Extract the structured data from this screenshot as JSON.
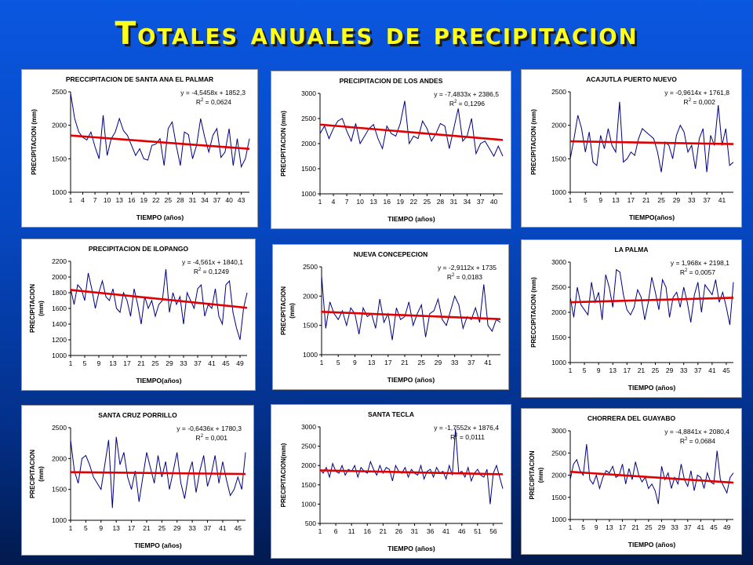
{
  "slide": {
    "title": "Totales anuales de precipitacion"
  },
  "colors": {
    "background": "#0647c0",
    "title": "#ffff1a",
    "series": "#00007f",
    "trend": "#e00000"
  },
  "chart_data": [
    {
      "type": "line",
      "title": "PRECCIPITACION DE SANTA ANA EL PALMAR",
      "xlabel": "TIEMPO (años)",
      "ylabel": "PRECIPITACION (mm)",
      "ylabel_lines": [
        "PRECIPITACION (mm)"
      ],
      "xticks": [
        "1",
        "4",
        "7",
        "10",
        "13",
        "16",
        "19",
        "22",
        "25",
        "28",
        "31",
        "34",
        "37",
        "40",
        "43"
      ],
      "yticks": [
        1000,
        1500,
        2000,
        2500
      ],
      "ylim": [
        1000,
        2500
      ],
      "n": 45,
      "equation": "y = -4,5458x + 1852,3",
      "r2": "0,0624",
      "values": [
        2480,
        2100,
        1900,
        1820,
        1780,
        1900,
        1680,
        1500,
        2150,
        1550,
        1800,
        1900,
        2100,
        1920,
        1850,
        1700,
        1550,
        1650,
        1500,
        1480,
        1700,
        1720,
        1800,
        1400,
        1950,
        2050,
        1700,
        1400,
        1900,
        1860,
        1500,
        1700,
        2100,
        1820,
        1600,
        1850,
        1950,
        1520,
        1600,
        1950,
        1400,
        1800,
        1380,
        1500,
        1800
      ]
    },
    {
      "type": "line",
      "title": "PRECIPITACION DE LOS ANDES",
      "xlabel": "TIEMPO (años)",
      "ylabel": "PRECIPITACION (mm)",
      "ylabel_lines": [
        "PRECIPITACION (mm)"
      ],
      "xticks": [
        "1",
        "4",
        "7",
        "10",
        "13",
        "16",
        "19",
        "22",
        "25",
        "28",
        "31",
        "34",
        "37",
        "40"
      ],
      "yticks": [
        1000,
        1500,
        2000,
        2500,
        3000
      ],
      "ylim": [
        1000,
        3000
      ],
      "n": 42,
      "equation": "y = -7,4833x + 2386,5",
      "r2": "0,1296",
      "values": [
        2200,
        2350,
        2100,
        2300,
        2450,
        2500,
        2250,
        2050,
        2400,
        2000,
        2150,
        2300,
        2380,
        2100,
        1900,
        2350,
        2200,
        2150,
        2400,
        2850,
        2000,
        2150,
        2100,
        2450,
        2300,
        2050,
        2200,
        2400,
        2350,
        1900,
        2300,
        2700,
        2050,
        2150,
        2500,
        1800,
        2000,
        2050,
        1900,
        1750,
        1950,
        1750
      ]
    },
    {
      "type": "line",
      "title": "ACAJUTLA PUERTO NUEVO",
      "xlabel": "TIEMPO(años)",
      "ylabel": "PRECIPITACION (mm)",
      "ylabel_lines": [
        "PRECIPITACION (mm)"
      ],
      "xticks": [
        "1",
        "5",
        "9",
        "13",
        "17",
        "21",
        "25",
        "29",
        "33",
        "37",
        "41"
      ],
      "yticks": [
        1000,
        1500,
        2000,
        2500
      ],
      "ylim": [
        1000,
        2500
      ],
      "n": 44,
      "equation": "y = -0,9614x + 1761,8",
      "r2": "0,002",
      "values": [
        1500,
        1800,
        2150,
        1950,
        1600,
        1900,
        1450,
        1400,
        1850,
        1650,
        1950,
        1700,
        1600,
        2350,
        1450,
        1500,
        1600,
        1550,
        1800,
        1950,
        1900,
        1850,
        1800,
        1600,
        1300,
        1750,
        1700,
        1500,
        1850,
        2000,
        1900,
        1600,
        1700,
        1350,
        1800,
        1950,
        1300,
        1850,
        1700,
        2300,
        1700,
        1950,
        1400,
        1450
      ]
    },
    {
      "type": "line",
      "title": "PRECIPITACION DE ILOPANGO",
      "xlabel": "TIEMPO(años)",
      "ylabel": "PRECIPITACION (mm)",
      "ylabel_lines": [
        "PRECIPITACION",
        "(mm)"
      ],
      "xticks": [
        "1",
        "5",
        "9",
        "13",
        "17",
        "21",
        "25",
        "29",
        "33",
        "37",
        "41",
        "45",
        "49"
      ],
      "yticks": [
        1000,
        1200,
        1400,
        1600,
        1800,
        2000,
        2200
      ],
      "ylim": [
        1000,
        2200
      ],
      "n": 51,
      "equation": "y = -4,561x + 1840,1",
      "r2": "0,1249",
      "values": [
        1850,
        1650,
        1900,
        1850,
        1700,
        2050,
        1850,
        1600,
        1800,
        1950,
        1750,
        1700,
        1850,
        1600,
        1550,
        1800,
        1700,
        1500,
        1850,
        1650,
        1400,
        1750,
        1600,
        1700,
        1500,
        1650,
        1700,
        2100,
        1550,
        1800,
        1650,
        1750,
        1400,
        1800,
        1700,
        1600,
        1850,
        1900,
        1500,
        1650,
        1600,
        1850,
        1500,
        1400,
        1900,
        1950,
        1550,
        1350,
        1200,
        1600,
        1800
      ]
    },
    {
      "type": "line",
      "title": "NUEVA CONCEPECION",
      "xlabel": "TIEMPO (años)",
      "ylabel": "PRECIPITACION (mm)",
      "ylabel_lines": [
        "PRECIPITACION",
        "(mm)"
      ],
      "xticks": [
        "1",
        "5",
        "9",
        "13",
        "17",
        "21",
        "25",
        "29",
        "33",
        "37",
        "41"
      ],
      "yticks": [
        1000,
        1500,
        2000,
        2500
      ],
      "ylim": [
        1000,
        2500
      ],
      "n": 44,
      "equation": "y = -2,9112x + 1735",
      "r2": "0,0183",
      "values": [
        2350,
        1450,
        1900,
        1700,
        1600,
        1750,
        1500,
        1800,
        1700,
        1350,
        1800,
        1650,
        1700,
        1450,
        1950,
        1550,
        1700,
        1250,
        1800,
        1600,
        1650,
        1900,
        1500,
        1700,
        1850,
        1300,
        1700,
        1750,
        1950,
        1600,
        1500,
        1750,
        2000,
        1850,
        1450,
        1650,
        1600,
        1800,
        1550,
        2200,
        1500,
        1400,
        1600,
        1550
      ]
    },
    {
      "type": "line",
      "title": "LA PALMA",
      "xlabel": "TIEMPO (años)",
      "ylabel": "PRECCIPITACION (mm)",
      "ylabel_lines": [
        "PRECCIPITACION (mm)"
      ],
      "xticks": [
        "1",
        "5",
        "9",
        "13",
        "17",
        "21",
        "25",
        "29",
        "33",
        "37",
        "41",
        "45"
      ],
      "yticks": [
        1000,
        1500,
        2000,
        2500,
        3000
      ],
      "ylim": [
        1000,
        3000
      ],
      "n": 47,
      "equation": "y = 1,968x + 2198,1",
      "r2": "0,0057",
      "values": [
        2300,
        1900,
        2500,
        2150,
        2050,
        1950,
        2600,
        2200,
        2400,
        1850,
        2750,
        2500,
        2100,
        2850,
        2800,
        2350,
        2050,
        1950,
        2100,
        2450,
        2300,
        1850,
        2200,
        2700,
        2400,
        2050,
        2650,
        2500,
        1900,
        2300,
        2400,
        2100,
        2500,
        2200,
        1800,
        2350,
        2600,
        2000,
        2550,
        2450,
        2350,
        2650,
        2200,
        2400,
        2100,
        1750,
        2600
      ]
    },
    {
      "type": "line",
      "title": "SANTA CRUZ PORRILLO",
      "xlabel": "TIEMPO (años)",
      "ylabel": "PRECIPITACION (mm)",
      "ylabel_lines": [
        "PRECIPITACION",
        "(mm)"
      ],
      "xticks": [
        "1",
        "5",
        "9",
        "13",
        "17",
        "21",
        "25",
        "29",
        "33",
        "37",
        "41",
        "45"
      ],
      "yticks": [
        1000,
        1500,
        2000,
        2500
      ],
      "ylim": [
        1000,
        2500
      ],
      "n": 47,
      "equation": "y = -0,6436x + 1780,3",
      "r2": "0,001",
      "values": [
        2300,
        1800,
        1600,
        2000,
        2050,
        1900,
        1700,
        1600,
        1500,
        1900,
        2300,
        1200,
        2350,
        1900,
        2100,
        1700,
        1500,
        1800,
        1300,
        1700,
        2100,
        1850,
        1600,
        2050,
        1700,
        1950,
        1500,
        1800,
        2100,
        1600,
        1350,
        1750,
        1950,
        1450,
        1800,
        2050,
        1550,
        1750,
        2050,
        1600,
        1950,
        1650,
        1400,
        1500,
        1700,
        1500,
        2100
      ]
    },
    {
      "type": "line",
      "title": "SANTA TECLA",
      "xlabel": "TIEMPO (años)",
      "ylabel": "PRECIPITACION(mm)",
      "ylabel_lines": [
        "PRECIPITACION(mm)"
      ],
      "xticks": [
        "1",
        "6",
        "11",
        "16",
        "21",
        "26",
        "31",
        "36",
        "41",
        "46",
        "51",
        "56"
      ],
      "yticks": [
        500,
        1000,
        1500,
        2000,
        2500,
        3000
      ],
      "ylim": [
        500,
        3000
      ],
      "n": 59,
      "equation": "y = -1,7552x + 1876,4",
      "r2": "0,0111",
      "values": [
        1900,
        1800,
        1950,
        1700,
        2050,
        1850,
        1800,
        2000,
        1750,
        1900,
        1850,
        2000,
        1700,
        1950,
        1850,
        1800,
        2100,
        1900,
        1750,
        2000,
        1800,
        1950,
        1900,
        1600,
        2000,
        1850,
        1800,
        1950,
        1700,
        1900,
        1800,
        1750,
        2000,
        1650,
        1850,
        1900,
        1700,
        1950,
        1800,
        1850,
        1650,
        2000,
        1750,
        2950,
        1800,
        1850,
        1700,
        1950,
        1600,
        1800,
        1900,
        1750,
        1700,
        1900,
        1000,
        1800,
        2000,
        1700,
        1400
      ]
    },
    {
      "type": "line",
      "title": "CHORRERA DEL GUAYABO",
      "xlabel": "TIEMPO (años)",
      "ylabel": "PRECIPITACION (mm)",
      "ylabel_lines": [
        "PRECIPITACION",
        "(mm)"
      ],
      "xticks": [
        "1",
        "5",
        "9",
        "13",
        "17",
        "21",
        "25",
        "29",
        "33",
        "37",
        "41",
        "45",
        "49"
      ],
      "yticks": [
        1000,
        1500,
        2000,
        2500,
        3000
      ],
      "ylim": [
        1000,
        3000
      ],
      "n": 51,
      "equation": "y = -4,8841x + 2080,4",
      "r2": "0,0684",
      "values": [
        1900,
        2250,
        2350,
        2100,
        2000,
        2700,
        1900,
        1800,
        2000,
        1700,
        1950,
        2100,
        2050,
        2200,
        1950,
        2000,
        2250,
        1800,
        2150,
        1900,
        2300,
        2000,
        1850,
        1950,
        1700,
        1800,
        1650,
        1350,
        2200,
        1900,
        2050,
        1700,
        1950,
        1800,
        2250,
        1900,
        1750,
        2100,
        1650,
        2000,
        1950,
        1700,
        2050,
        1850,
        1800,
        2550,
        1900,
        1750,
        1600,
        1950,
        2050
      ]
    }
  ]
}
